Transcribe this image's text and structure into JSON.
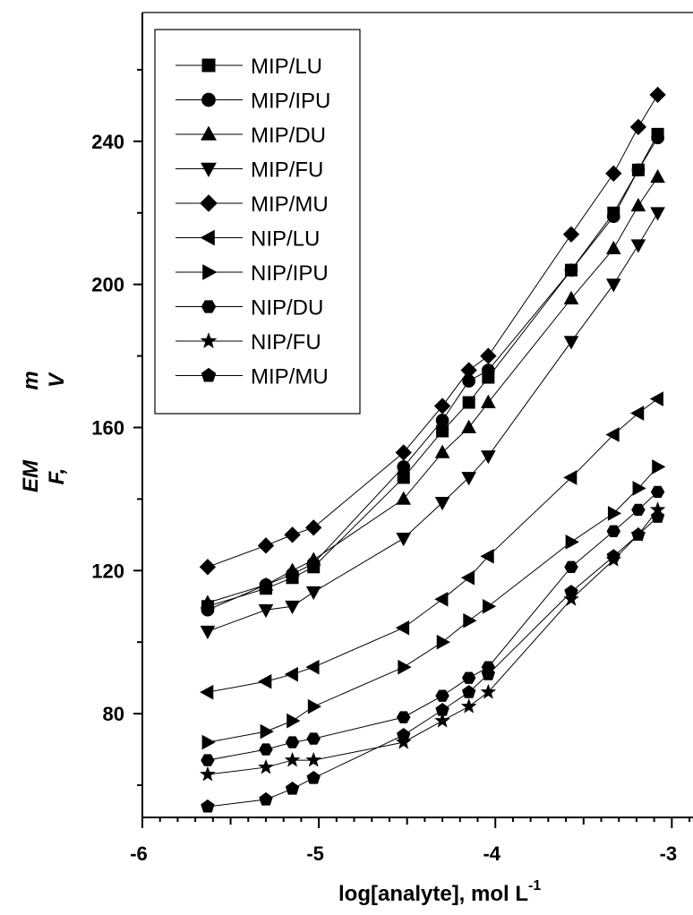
{
  "chart_data": {
    "type": "line",
    "xlabel": "log[analyte], mol L",
    "xlabel_superscript": "-1",
    "ylabel_parts": [
      "EM",
      "F,",
      "m",
      "V"
    ],
    "xlim": [
      -6.0,
      -2.88
    ],
    "ylim": [
      51,
      276
    ],
    "xticks": [
      -6,
      -5,
      -4,
      -3
    ],
    "xtick_labels": [
      "-6",
      "-5",
      "-4",
      "-3"
    ],
    "yticks": [
      80,
      120,
      160,
      200,
      240
    ],
    "ytick_labels": [
      "80",
      "120",
      "160",
      "200",
      "240"
    ],
    "grid": false,
    "legend_position": "top-left",
    "x": [
      -5.63,
      -5.3,
      -5.15,
      -5.03,
      -4.52,
      -4.3,
      -4.15,
      -4.04,
      -3.57,
      -3.33,
      -3.19,
      -3.08
    ],
    "series": [
      {
        "name": "MIP/LU",
        "marker": "square",
        "values": [
          110,
          115,
          118,
          121,
          146,
          159,
          167,
          174,
          204,
          220,
          232,
          242
        ]
      },
      {
        "name": "MIP/IPU",
        "marker": "circle",
        "values": [
          109,
          116,
          119,
          122,
          149,
          162,
          173,
          176,
          204,
          219,
          232,
          241
        ]
      },
      {
        "name": "MIP/DU",
        "marker": "triangle-up",
        "values": [
          111,
          116,
          120,
          123,
          140,
          153,
          160,
          167,
          196,
          210,
          222,
          230
        ]
      },
      {
        "name": "MIP/FU",
        "marker": "triangle-down",
        "values": [
          103,
          109,
          110,
          114,
          129,
          139,
          146,
          152,
          184,
          200,
          211,
          220
        ]
      },
      {
        "name": "MIP/MU",
        "marker": "diamond",
        "values": [
          121,
          127,
          130,
          132,
          153,
          166,
          176,
          180,
          214,
          231,
          244,
          253
        ]
      },
      {
        "name": "NIP/LU",
        "marker": "triangle-left",
        "values": [
          86,
          89,
          91,
          93,
          104,
          112,
          118,
          124,
          146,
          158,
          164,
          168
        ]
      },
      {
        "name": "NIP/IPU",
        "marker": "triangle-right",
        "values": [
          72,
          75,
          78,
          82,
          93,
          100,
          106,
          110,
          128,
          136,
          143,
          149
        ]
      },
      {
        "name": "NIP/DU",
        "marker": "hexagon",
        "values": [
          67,
          70,
          72,
          73,
          79,
          85,
          90,
          93,
          121,
          131,
          137,
          142
        ]
      },
      {
        "name": "NIP/FU",
        "marker": "star",
        "values": [
          63,
          65,
          67,
          67,
          72,
          78,
          82,
          86,
          112,
          123,
          130,
          137
        ]
      },
      {
        "name": "MIP/MU",
        "marker": "pentagon",
        "values": [
          54,
          56,
          59,
          62,
          74,
          81,
          86,
          91,
          114,
          124,
          130,
          135
        ]
      }
    ]
  }
}
